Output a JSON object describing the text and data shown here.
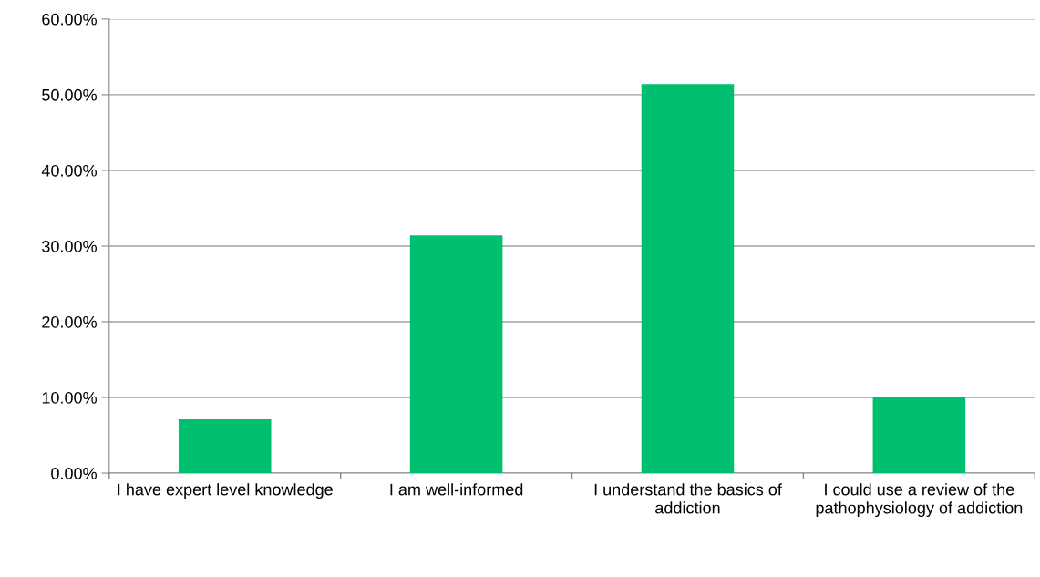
{
  "chart_data": {
    "type": "bar",
    "categories": [
      "I have expert level knowledge",
      "I am well-informed",
      "I understand the basics of addiction",
      "I could use a review of the pathophysiology of addiction"
    ],
    "values": [
      7.1,
      31.4,
      51.4,
      10.0
    ],
    "color": "#00bf6f",
    "ylim": [
      0,
      60
    ],
    "yticks": [
      {
        "value": 0,
        "label": "0.00%"
      },
      {
        "value": 10,
        "label": "10.00%"
      },
      {
        "value": 20,
        "label": "20.00%"
      },
      {
        "value": 30,
        "label": "30.00%"
      },
      {
        "value": 40,
        "label": "40.00%"
      },
      {
        "value": 50,
        "label": "50.00%"
      },
      {
        "value": 60,
        "label": "60.00%"
      }
    ],
    "grid": "y"
  }
}
